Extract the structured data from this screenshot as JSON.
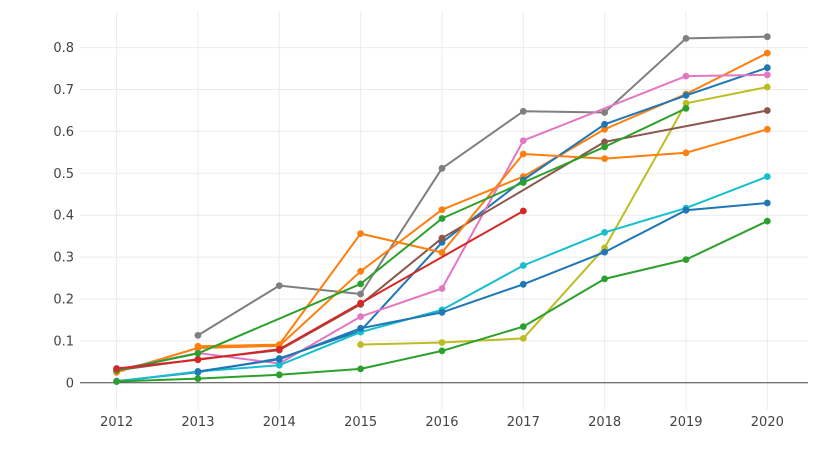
{
  "chart_data": {
    "type": "line",
    "title": "",
    "xlabel": "",
    "ylabel": "",
    "x": [
      2012,
      2013,
      2014,
      2015,
      2016,
      2017,
      2018,
      2019,
      2020
    ],
    "x_tick_labels": [
      "2012",
      "2013",
      "2014",
      "2015",
      "2016",
      "2017",
      "2018",
      "2019",
      "2020"
    ],
    "y_ticks": [
      0,
      0.1,
      0.2,
      0.3,
      0.4,
      0.5,
      0.6,
      0.7,
      0.8
    ],
    "y_tick_labels": [
      "0",
      "0.1",
      "0.2",
      "0.3",
      "0.4",
      "0.5",
      "0.6",
      "0.7",
      "0.8"
    ],
    "xlim": [
      2011.55,
      2020.5
    ],
    "ylim": [
      -0.065,
      0.885
    ],
    "grid": true,
    "legend": "none",
    "series": [
      {
        "color": "#7f7f7f",
        "values": [
          null,
          0.113,
          0.232,
          0.212,
          0.512,
          0.648,
          0.645,
          0.822,
          0.826
        ]
      },
      {
        "color": "#ff7f0e",
        "values": [
          0.025,
          0.083,
          0.088,
          0.266,
          0.413,
          0.492,
          0.605,
          0.689,
          0.787
        ]
      },
      {
        "color": "#1f77b4",
        "values": [
          0.004,
          0.025,
          0.058,
          0.124,
          0.335,
          0.484,
          0.617,
          0.686,
          0.752
        ]
      },
      {
        "color": "#e377c2",
        "values": [
          0.031,
          0.071,
          0.046,
          0.158,
          0.225,
          0.578,
          null,
          0.732,
          0.735
        ]
      },
      {
        "color": "#bcbd22",
        "values": [
          null,
          null,
          null,
          0.091,
          0.096,
          0.106,
          0.322,
          0.667,
          0.706
        ]
      },
      {
        "color": "#8c564b",
        "values": [
          0.03,
          0.056,
          0.078,
          0.187,
          0.345,
          null,
          0.575,
          null,
          0.65
        ]
      },
      {
        "color": "#ff7f0e",
        "values": [
          null,
          0.087,
          0.091,
          0.356,
          0.311,
          0.546,
          0.535,
          0.549,
          0.605
        ]
      },
      {
        "color": "#17becf",
        "values": [
          0.003,
          0.027,
          0.042,
          0.121,
          0.174,
          0.28,
          0.359,
          0.417,
          0.492
        ]
      },
      {
        "color": "#1f77b4",
        "values": [
          null,
          0.027,
          0.056,
          0.13,
          0.168,
          0.235,
          0.312,
          0.412,
          0.429
        ]
      },
      {
        "color": "#2ca02c",
        "values": [
          0.003,
          0.01,
          0.019,
          0.033,
          0.076,
          0.134,
          0.248,
          0.294,
          0.386
        ]
      },
      {
        "color": "#2ca02c",
        "values": [
          0.03,
          0.07,
          null,
          0.236,
          0.392,
          0.478,
          0.563,
          0.655,
          null
        ]
      },
      {
        "color": "#d62728",
        "values": [
          0.034,
          0.055,
          0.08,
          0.19,
          null,
          0.41,
          null,
          null,
          null
        ]
      }
    ]
  }
}
